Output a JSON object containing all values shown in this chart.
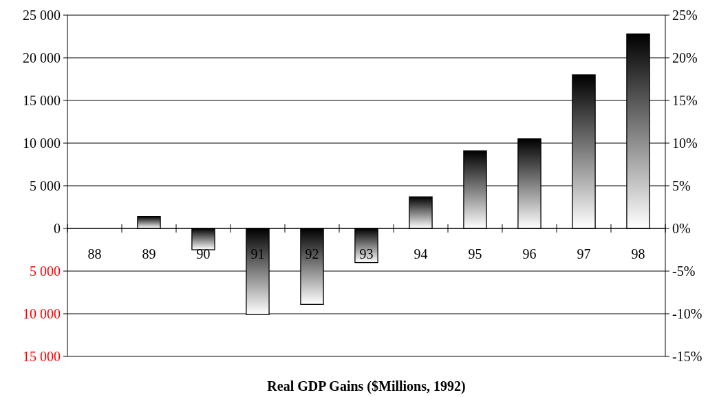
{
  "chart_data": {
    "type": "bar",
    "xlabel": "Real GDP Gains ($Millions, 1992)",
    "categories": [
      "88",
      "89",
      "90",
      "91",
      "92",
      "93",
      "94",
      "95",
      "96",
      "97",
      "98"
    ],
    "values": [
      0,
      1400,
      -2500,
      -10100,
      -8900,
      -4000,
      3700,
      9100,
      10500,
      18000,
      22800
    ],
    "color": "#000000",
    "ylim": [
      -15000,
      25000
    ],
    "yticks": [
      {
        "value": -15000,
        "label": "15 000"
      },
      {
        "value": -10000,
        "label": "10 000"
      },
      {
        "value": -5000,
        "label": "5 000"
      },
      {
        "value": 0,
        "label": "0"
      },
      {
        "value": 5000,
        "label": "5 000"
      },
      {
        "value": 10000,
        "label": "10 000"
      },
      {
        "value": 15000,
        "label": "15 000"
      },
      {
        "value": 20000,
        "label": "20 000"
      },
      {
        "value": 25000,
        "label": "25 000"
      }
    ],
    "y2lim": [
      -15,
      25
    ],
    "y2ticks": [
      {
        "value": -15,
        "label": "-15%"
      },
      {
        "value": -10,
        "label": "-10%"
      },
      {
        "value": -5,
        "label": "-5%"
      },
      {
        "value": 0,
        "label": "0%"
      },
      {
        "value": 5,
        "label": "5%"
      },
      {
        "value": 10,
        "label": "10%"
      },
      {
        "value": 15,
        "label": "15%"
      },
      {
        "value": 20,
        "label": "20%"
      },
      {
        "value": 25,
        "label": "25%"
      }
    ],
    "grid": "y"
  }
}
